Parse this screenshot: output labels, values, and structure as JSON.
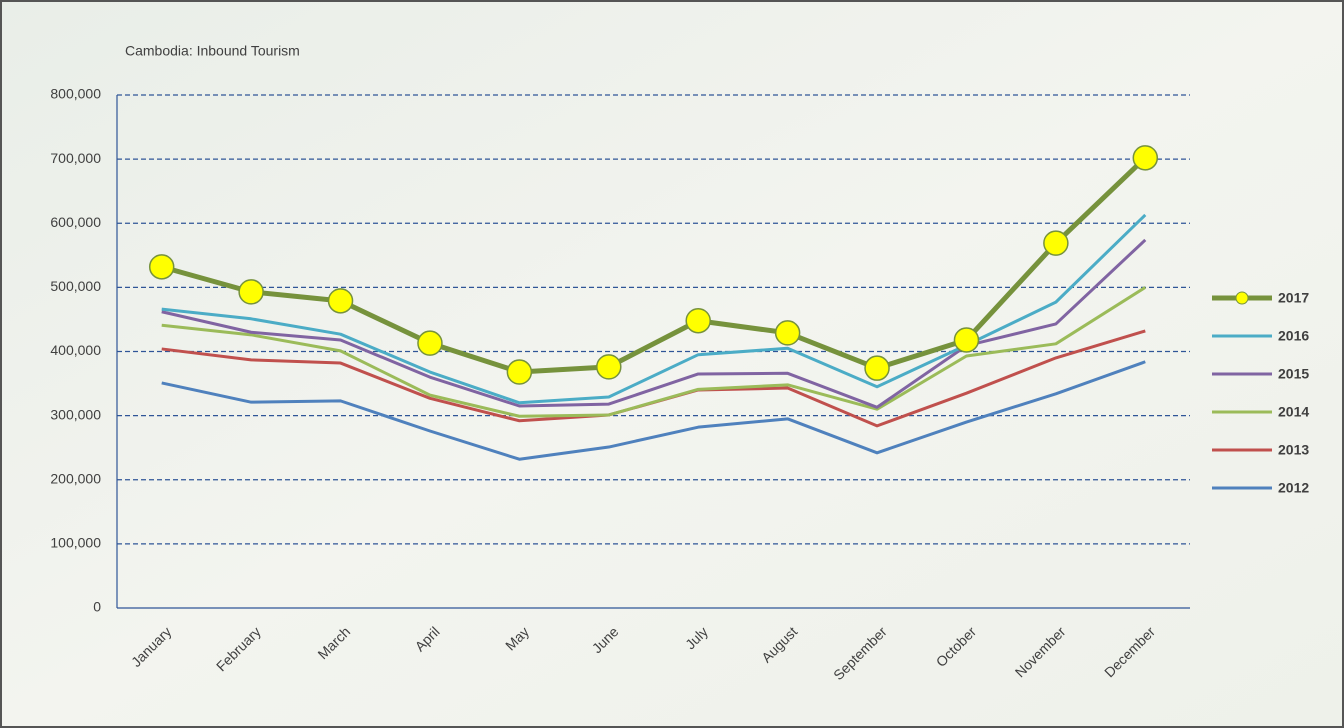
{
  "chart_data": {
    "type": "line",
    "title": "Cambodia: Inbound Tourism",
    "categories": [
      "January",
      "February",
      "March",
      "April",
      "May",
      "June",
      "July",
      "August",
      "September",
      "October",
      "November",
      "December"
    ],
    "series": [
      {
        "name": "2017",
        "color": "#76923c",
        "marker": true,
        "values": [
          532000,
          493000,
          479000,
          413000,
          368000,
          376000,
          448000,
          429000,
          374000,
          418000,
          569000,
          702000
        ]
      },
      {
        "name": "2016",
        "color": "#4bacc6",
        "values": [
          466000,
          451000,
          427000,
          368000,
          320000,
          329000,
          395000,
          405000,
          345000,
          410000,
          477000,
          613000
        ]
      },
      {
        "name": "2015",
        "color": "#8064a2",
        "values": [
          462000,
          430000,
          418000,
          360000,
          315000,
          318000,
          365000,
          366000,
          313000,
          409000,
          443000,
          574000
        ]
      },
      {
        "name": "2014",
        "color": "#9bbb59",
        "values": [
          441000,
          426000,
          401000,
          332000,
          299000,
          301000,
          341000,
          348000,
          310000,
          393000,
          412000,
          500000
        ]
      },
      {
        "name": "2013",
        "color": "#c0504d",
        "values": [
          404000,
          387000,
          382000,
          327000,
          292000,
          301000,
          340000,
          343000,
          284000,
          335000,
          390000,
          432000
        ]
      },
      {
        "name": "2012",
        "color": "#4f81bd",
        "values": [
          351000,
          321000,
          323000,
          276000,
          232000,
          251000,
          282000,
          295000,
          242000,
          290000,
          334000,
          384000
        ]
      }
    ],
    "ylim": [
      0,
      800000
    ],
    "yticks": [
      0,
      {
        "value": 100000,
        "label": "100,000"
      },
      {
        "value": 200000,
        "label": "200,000"
      },
      {
        "value": 300000,
        "label": "300,000"
      },
      {
        "value": 400000,
        "label": "400,000"
      },
      {
        "value": 500000,
        "label": "500,000"
      },
      {
        "value": 600000,
        "label": "600,000"
      },
      {
        "value": 700000,
        "label": "700,000"
      },
      {
        "value": 800000,
        "label": "800,000"
      }
    ],
    "grid": true,
    "legend": "right"
  }
}
